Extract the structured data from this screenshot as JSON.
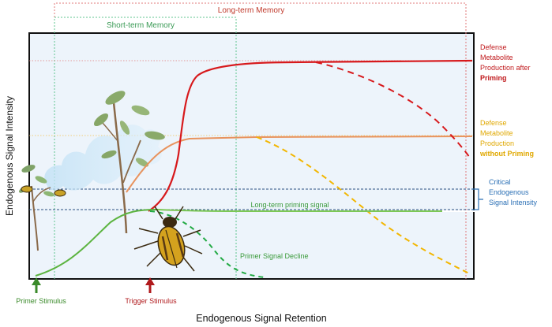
{
  "memory": {
    "long_term": "Long-term Memory",
    "short_term": "Short-term Memory"
  },
  "axes": {
    "y_label": "Endogenous Signal Intensity",
    "x_label": "Endogenous Signal Retention"
  },
  "curves": {
    "primed_label": [
      "Defense",
      "Metabolite",
      "Production after"
    ],
    "primed_bold": "Priming",
    "unprimed_label": [
      "Defense",
      "Metabolite",
      "Production"
    ],
    "unprimed_bold": "without Priming",
    "long_term_signal": "Long-term priming signal",
    "primer_decline": "Primer Signal Decline",
    "critical": [
      "Critical",
      "Endogenous",
      "Signal Intensity"
    ]
  },
  "stimuli": {
    "primer": "Primer Stimulus",
    "trigger": "Trigger Stimulus"
  },
  "colors": {
    "primed": "#d7191c",
    "unprimed": "#e8935e",
    "unprimed_decline": "#f2b600",
    "signal": "#5cb440",
    "primer_decline": "#22aa44",
    "critical": "#2a6fb5",
    "long_term_box": "#e0787a",
    "short_term_box": "#5fc48f"
  }
}
